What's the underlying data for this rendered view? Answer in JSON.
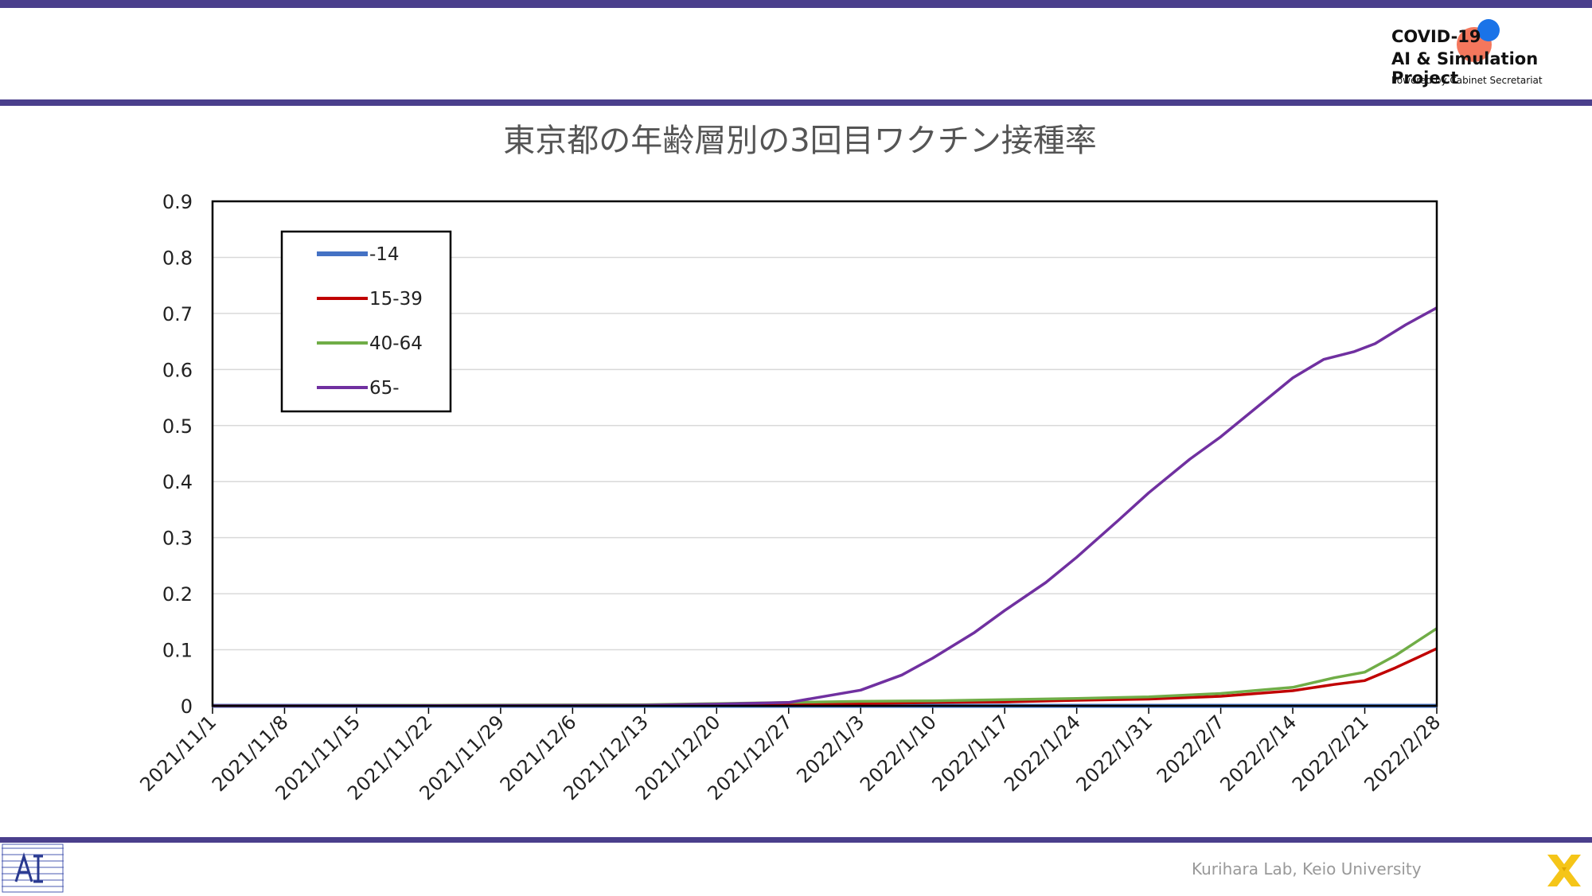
{
  "header": {
    "brand_line1": "COVID-19",
    "brand_line2": "AI & Simulation Project",
    "brand_line3": "Powered by Cabinet Secretariat"
  },
  "footer": {
    "text": "Kurihara Lab, Keio University"
  },
  "colors": {
    "accent": "#4a3f8c",
    "series_14": "#4472c4",
    "series_15_39": "#c00000",
    "series_40_64": "#70ad47",
    "series_65": "#7030a0"
  },
  "chart_data": {
    "type": "line",
    "title": "東京都の年齢層別の3回目ワクチン接種率",
    "xlabel": "",
    "ylabel": "",
    "ylim": [
      0,
      0.9
    ],
    "yticks": [
      "0",
      "0.1",
      "0.2",
      "0.3",
      "0.4",
      "0.5",
      "0.6",
      "0.7",
      "0.8",
      "0.9"
    ],
    "x_start": "2021/11/1",
    "x_end": "2022/2/28",
    "x_ticks": [
      "2021/11/1",
      "2021/11/8",
      "2021/11/15",
      "2021/11/22",
      "2021/11/29",
      "2021/12/6",
      "2021/12/13",
      "2021/12/20",
      "2021/12/27",
      "2022/1/3",
      "2022/1/10",
      "2022/1/17",
      "2022/1/24",
      "2022/1/31",
      "2022/2/7",
      "2022/2/14",
      "2022/2/21",
      "2022/2/28"
    ],
    "grid": true,
    "legend_position": "top-left",
    "series": [
      {
        "name": "-14",
        "color": "#4472c4",
        "points": [
          [
            "2021/11/1",
            0
          ],
          [
            "2022/2/28",
            0
          ]
        ]
      },
      {
        "name": "15-39",
        "color": "#c00000",
        "points": [
          [
            "2021/11/1",
            0
          ],
          [
            "2021/12/13",
            0.001
          ],
          [
            "2021/12/20",
            0.003
          ],
          [
            "2021/12/27",
            0.004
          ],
          [
            "2022/1/3",
            0.004
          ],
          [
            "2022/1/10",
            0.006
          ],
          [
            "2022/1/17",
            0.007
          ],
          [
            "2022/1/24",
            0.01
          ],
          [
            "2022/1/31",
            0.012
          ],
          [
            "2022/2/7",
            0.017
          ],
          [
            "2022/2/14",
            0.027
          ],
          [
            "2022/2/18",
            0.038
          ],
          [
            "2022/2/21",
            0.045
          ],
          [
            "2022/2/24",
            0.068
          ],
          [
            "2022/2/28",
            0.102
          ]
        ]
      },
      {
        "name": "40-64",
        "color": "#70ad47",
        "points": [
          [
            "2021/11/1",
            0
          ],
          [
            "2021/12/13",
            0.002
          ],
          [
            "2021/12/20",
            0.004
          ],
          [
            "2021/12/27",
            0.006
          ],
          [
            "2022/1/3",
            0.008
          ],
          [
            "2022/1/10",
            0.009
          ],
          [
            "2022/1/17",
            0.011
          ],
          [
            "2022/1/24",
            0.013
          ],
          [
            "2022/1/31",
            0.016
          ],
          [
            "2022/2/7",
            0.022
          ],
          [
            "2022/2/14",
            0.033
          ],
          [
            "2022/2/18",
            0.05
          ],
          [
            "2022/2/21",
            0.06
          ],
          [
            "2022/2/24",
            0.09
          ],
          [
            "2022/2/28",
            0.138
          ]
        ]
      },
      {
        "name": "65-",
        "color": "#7030a0",
        "points": [
          [
            "2021/11/1",
            0
          ],
          [
            "2021/12/13",
            0.001
          ],
          [
            "2021/12/20",
            0.003
          ],
          [
            "2021/12/27",
            0.006
          ],
          [
            "2022/1/3",
            0.028
          ],
          [
            "2022/1/7",
            0.055
          ],
          [
            "2022/1/10",
            0.085
          ],
          [
            "2022/1/14",
            0.13
          ],
          [
            "2022/1/17",
            0.17
          ],
          [
            "2022/1/21",
            0.22
          ],
          [
            "2022/1/24",
            0.265
          ],
          [
            "2022/1/28",
            0.33
          ],
          [
            "2022/1/31",
            0.38
          ],
          [
            "2022/2/4",
            0.44
          ],
          [
            "2022/2/7",
            0.48
          ],
          [
            "2022/2/11",
            0.54
          ],
          [
            "2022/2/14",
            0.585
          ],
          [
            "2022/2/17",
            0.618
          ],
          [
            "2022/2/20",
            0.632
          ],
          [
            "2022/2/22",
            0.646
          ],
          [
            "2022/2/25",
            0.68
          ],
          [
            "2022/2/28",
            0.71
          ]
        ]
      }
    ]
  }
}
